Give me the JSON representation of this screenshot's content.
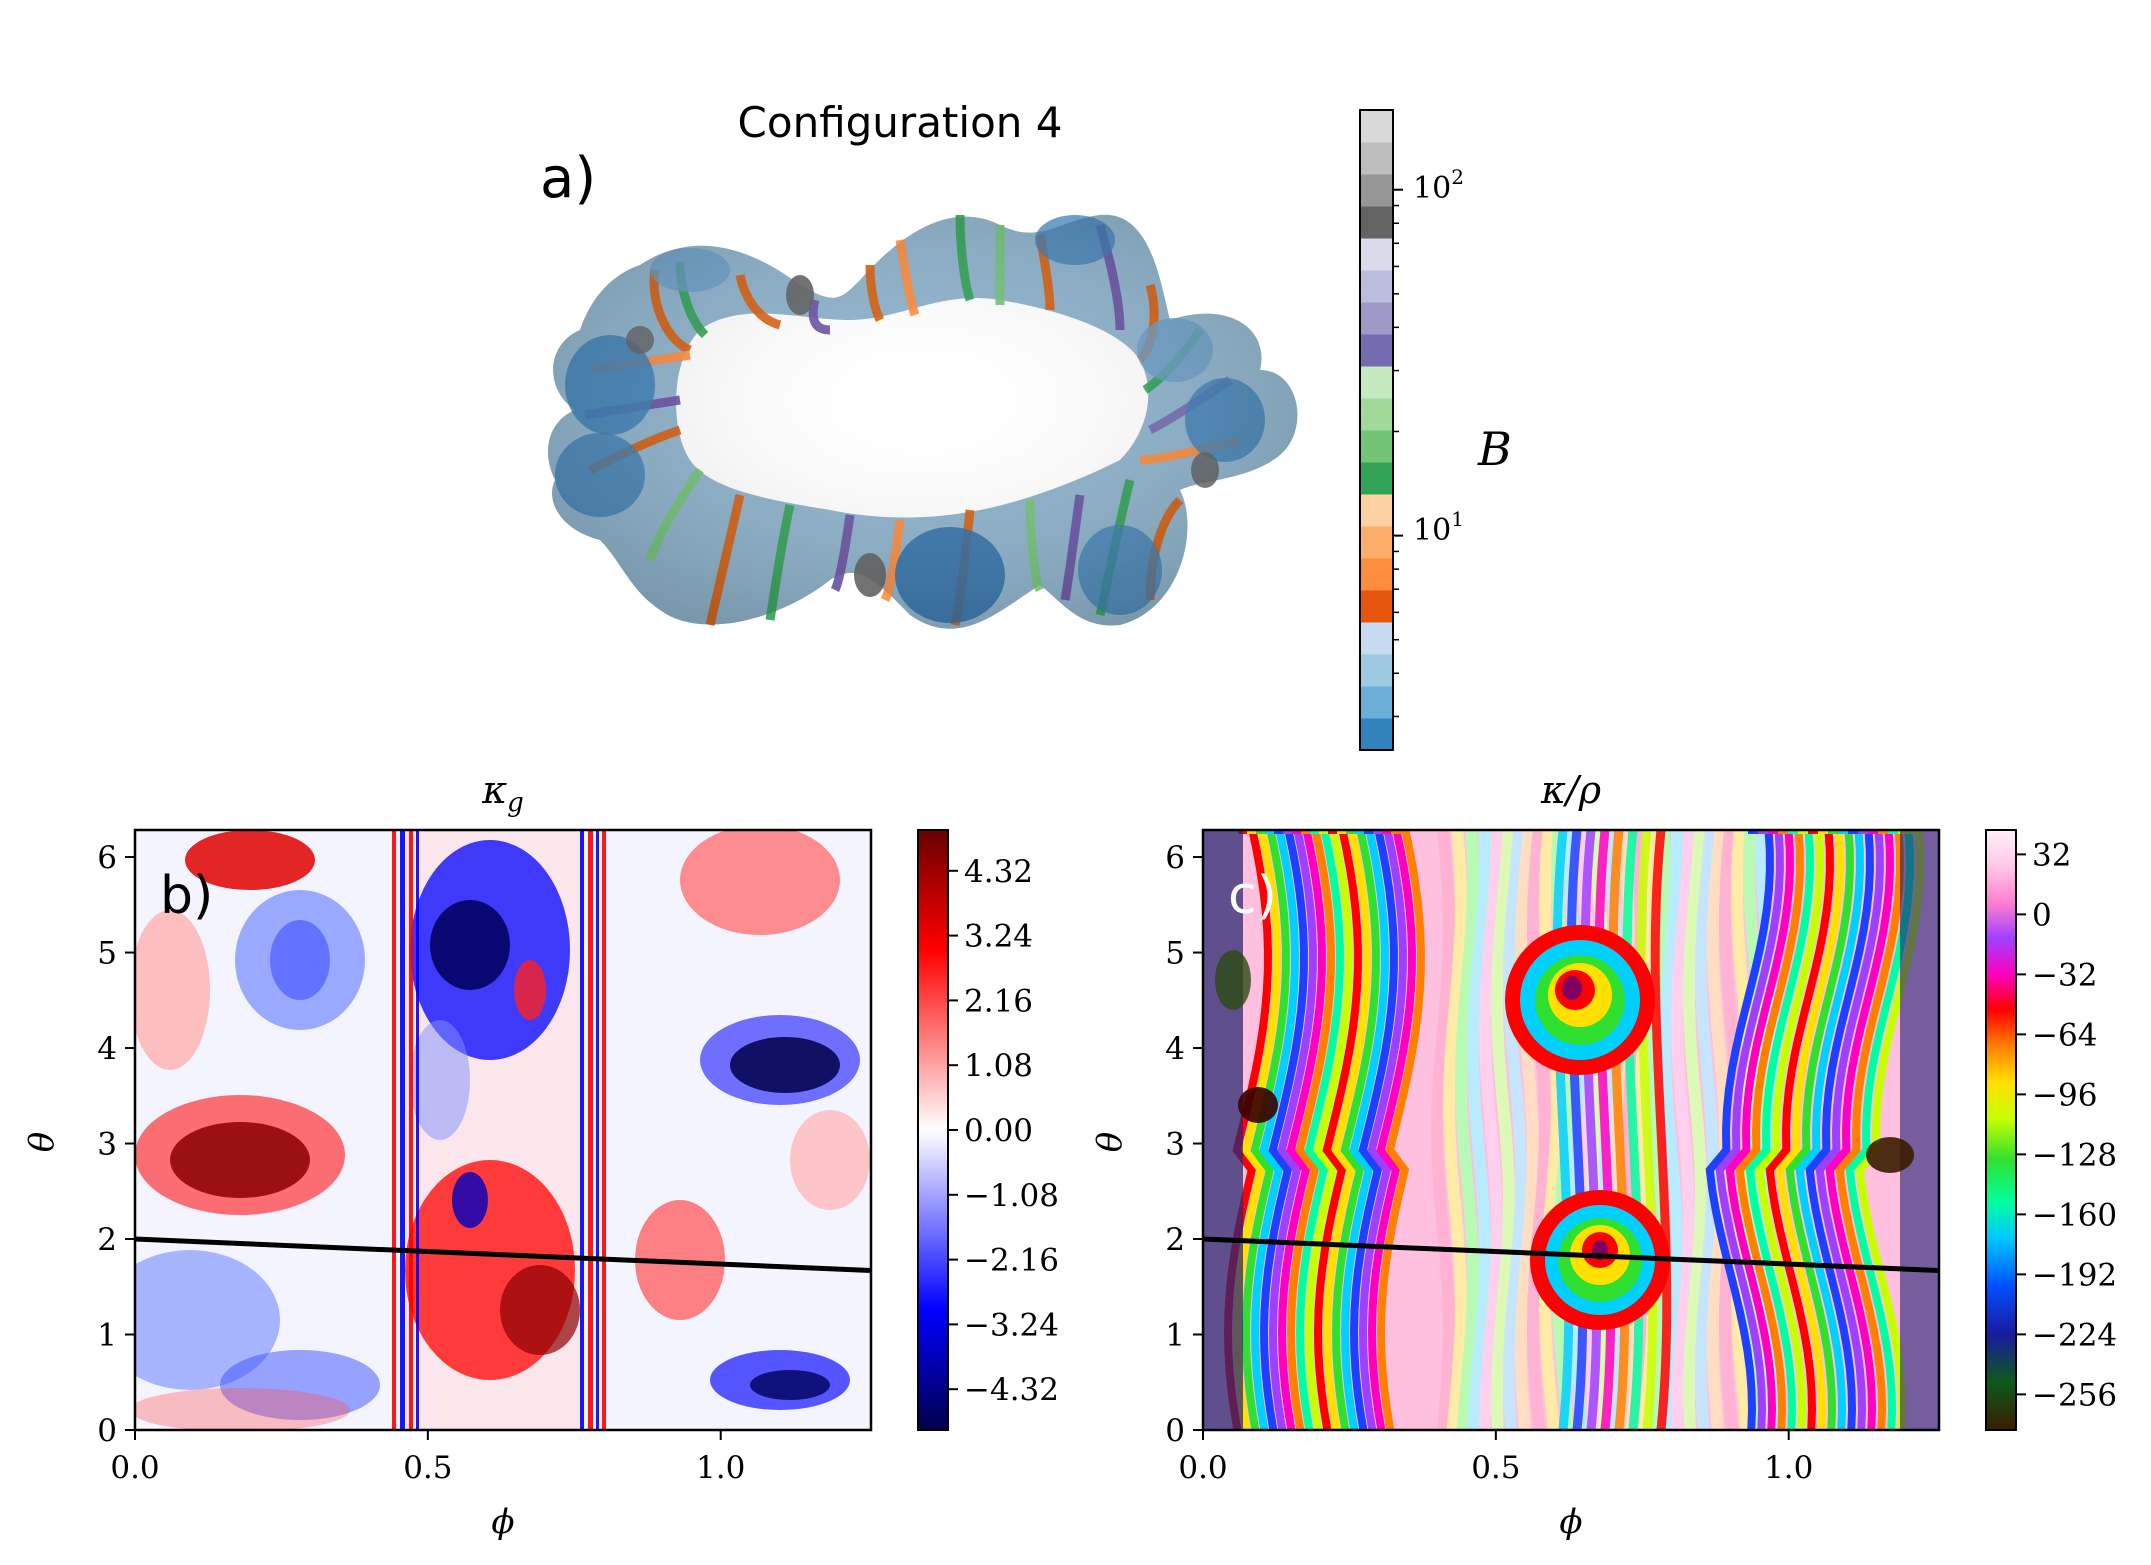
{
  "figure": {
    "panel_a": {
      "title": "Configuration 4",
      "label": "a)",
      "colorbar": {
        "label": "B",
        "scale": "log",
        "ticks": [
          {
            "base": "10",
            "exp": "1"
          },
          {
            "base": "10",
            "exp": "2"
          }
        ],
        "range": [
          2.4,
          170
        ]
      }
    },
    "panel_b": {
      "label": "b)",
      "title": "κ_g"
    },
    "panel_c": {
      "label": "c)",
      "title": "κ/ρ"
    },
    "axes": {
      "xlabel": "ϕ",
      "ylabel": "θ",
      "xticks": [
        "0.0",
        "0.5",
        "1.0"
      ],
      "yticks": [
        "0",
        "1",
        "2",
        "3",
        "4",
        "5",
        "6"
      ]
    }
  },
  "colors": {
    "b_colormap": [
      "#00004a",
      "#0000ff",
      "#ffffff",
      "#ff0000",
      "#6a0000"
    ],
    "c_colormap": "gist_ncar",
    "line": "#000000",
    "torus_colormap": "tab20c"
  },
  "chart_data": [
    {
      "type": "heatmap",
      "title": "κ_g",
      "xlabel": "ϕ",
      "ylabel": "θ",
      "xlim": [
        0,
        1.2566
      ],
      "ylim": [
        0,
        6.2832
      ],
      "colorbar_ticks": [
        "4.32",
        "3.24",
        "2.16",
        "1.08",
        "0.00",
        "−1.08",
        "−2.16",
        "−3.24",
        "−4.32"
      ],
      "colorbar_range": [
        -5.0,
        5.0
      ],
      "line": {
        "x": [
          0,
          1.2566
        ],
        "y": [
          2.0,
          1.67
        ]
      }
    },
    {
      "type": "heatmap",
      "title": "κ/ρ",
      "xlabel": "ϕ",
      "ylabel": "θ",
      "xlim": [
        0,
        1.2566
      ],
      "ylim": [
        0,
        6.2832
      ],
      "colorbar_ticks": [
        "32",
        "0",
        "−32",
        "−64",
        "−96",
        "−128",
        "−160",
        "−192",
        "−224",
        "−256"
      ],
      "colorbar_range": [
        -275,
        45
      ],
      "line": {
        "x": [
          0,
          1.2566
        ],
        "y": [
          2.0,
          1.67
        ]
      }
    }
  ]
}
